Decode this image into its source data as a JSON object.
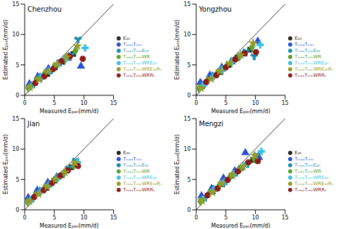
{
  "chart_data": [
    {
      "type": "scatter",
      "title": "Chenzhou",
      "x_label": "Measured Eₚₐₙ(mm/d)",
      "y_label": "Estimated Eₚₐₙ(mm/d)",
      "xlim": [
        0,
        15
      ],
      "ylim": [
        0,
        15
      ],
      "xticks": [
        0,
        5,
        10,
        15
      ],
      "yticks": [
        0,
        5,
        10,
        15
      ],
      "grid": false,
      "legend": "right",
      "series": [
        {
          "name": "E₂₀",
          "color": "#222222",
          "marker": "square",
          "x": [
            1.2,
            2.5,
            3.8,
            5.1,
            6.4,
            8.2
          ],
          "y": [
            1.6,
            2.7,
            3.5,
            4.6,
            5.5,
            6.8
          ]
        },
        {
          "name": "TₘₐₓTₘᵢₙ",
          "color": "#2a4fd6",
          "marker": "triangle",
          "x": [
            0.8,
            2.2,
            4.0,
            5.6,
            7.3,
            9.5
          ],
          "y": [
            1.9,
            3.1,
            4.4,
            5.2,
            6.1,
            4.8
          ]
        },
        {
          "name": "TₘₐₓTₘᵢₙE₂₀",
          "color": "#1f8fb0",
          "marker": "wye",
          "x": [
            1.5,
            3.0,
            4.5,
            6.0,
            7.8,
            9.0
          ],
          "y": [
            1.8,
            3.2,
            4.1,
            5.4,
            6.6,
            9.2
          ]
        },
        {
          "name": "TₘₐₓTₘᵢₙWR",
          "color": "#5aa02c",
          "marker": "diamond",
          "x": [
            0.6,
            2.0,
            3.4,
            5.0,
            6.8,
            8.6
          ],
          "y": [
            1.2,
            2.5,
            3.6,
            4.7,
            5.9,
            7.4
          ]
        },
        {
          "name": "TₘₐₓTₘᵢₙWRE₂₀",
          "color": "#3cc0e0",
          "marker": "cross",
          "x": [
            1.0,
            2.8,
            4.2,
            5.8,
            7.0,
            10.2
          ],
          "y": [
            1.4,
            3.0,
            4.0,
            5.3,
            6.2,
            7.8
          ]
        },
        {
          "name": "TₘₐₓTₘᵢₙWRRₛ",
          "color": "#8b1a1a",
          "marker": "circle",
          "x": [
            1.8,
            3.3,
            4.8,
            6.2,
            7.6,
            9.8
          ],
          "y": [
            2.0,
            3.1,
            4.3,
            5.6,
            6.4,
            6.0
          ]
        },
        {
          "name": "TₘₐₓTₘᵢₙWRE₂₀Rₛ",
          "color": "#9a9a2a",
          "marker": "star",
          "x": [
            0.9,
            2.4,
            3.9,
            5.4,
            7.1,
            8.9
          ],
          "y": [
            1.3,
            2.6,
            3.9,
            5.1,
            6.3,
            8.1
          ]
        }
      ]
    },
    {
      "type": "scatter",
      "title": "Yongzhou",
      "x_label": "Measured Eₚₐₙ(mm/d)",
      "y_label": "Estimated Eₚₐₙ(mm/d)",
      "xlim": [
        0,
        15
      ],
      "ylim": [
        0,
        15
      ],
      "xticks": [
        0,
        5,
        10,
        15
      ],
      "yticks": [
        0,
        5,
        10,
        15
      ],
      "grid": false,
      "legend": "right",
      "series": [
        {
          "name": "E₂₀",
          "color": "#222222",
          "marker": "square",
          "x": [
            1.0,
            2.6,
            4.1,
            5.5,
            7.0,
            9.1
          ],
          "y": [
            1.5,
            2.9,
            3.8,
            5.0,
            6.2,
            7.5
          ]
        },
        {
          "name": "TₘₐₓTₘᵢₙ",
          "color": "#2a4fd6",
          "marker": "triangle",
          "x": [
            0.7,
            2.3,
            4.3,
            6.0,
            8.0,
            10.4
          ],
          "y": [
            2.1,
            3.3,
            4.6,
            5.5,
            6.8,
            8.9
          ]
        },
        {
          "name": "TₘₐₓTₘᵢₙE₂₀",
          "color": "#1f8fb0",
          "marker": "wye",
          "x": [
            1.4,
            3.1,
            4.7,
            6.3,
            8.4,
            9.8
          ],
          "y": [
            1.9,
            3.4,
            4.5,
            5.8,
            7.2,
            6.4
          ]
        },
        {
          "name": "TₘₐₓTₘᵢₙWR",
          "color": "#5aa02c",
          "marker": "diamond",
          "x": [
            0.5,
            1.9,
            3.6,
            5.2,
            7.2,
            9.4
          ],
          "y": [
            1.1,
            2.4,
            3.7,
            4.9,
            6.3,
            7.9
          ]
        },
        {
          "name": "TₘₐₓTₘᵢₙWRE₂₀",
          "color": "#3cc0e0",
          "marker": "cross",
          "x": [
            1.1,
            2.9,
            4.4,
            6.1,
            7.7,
            10.8
          ],
          "y": [
            1.5,
            3.1,
            4.2,
            5.6,
            6.7,
            8.3
          ]
        },
        {
          "name": "TₘₐₓTₘᵢₙWRRₛ",
          "color": "#8b1a1a",
          "marker": "circle",
          "x": [
            1.7,
            3.4,
            5.0,
            6.6,
            8.2,
            10.1
          ],
          "y": [
            2.2,
            3.3,
            4.6,
            5.9,
            6.9,
            7.1
          ]
        },
        {
          "name": "TₘₐₓTₘᵢₙWRE₂₀Rₛ",
          "color": "#9a9a2a",
          "marker": "star",
          "x": [
            0.8,
            2.5,
            4.0,
            5.7,
            7.5,
            9.6
          ],
          "y": [
            1.2,
            2.7,
            4.0,
            5.3,
            6.6,
            8.6
          ]
        }
      ]
    },
    {
      "type": "scatter",
      "title": "Jian",
      "x_label": "Measured Eₚₐₙ(mm/d)",
      "y_label": "Estimated Eₚₐₙ(mm/d)",
      "xlim": [
        0,
        15
      ],
      "ylim": [
        0,
        15
      ],
      "xticks": [
        0,
        5,
        10,
        15
      ],
      "yticks": [
        0,
        5,
        10,
        15
      ],
      "grid": false,
      "legend": "right",
      "series": [
        {
          "name": "E₂₀",
          "color": "#222222",
          "marker": "square",
          "x": [
            1.1,
            2.4,
            3.7,
            5.0,
            6.3,
            7.9
          ],
          "y": [
            1.7,
            2.8,
            3.6,
            4.8,
            5.7,
            7.0
          ]
        },
        {
          "name": "TₘₐₓTₘᵢₙ",
          "color": "#2a4fd6",
          "marker": "triangle",
          "x": [
            0.6,
            2.1,
            3.9,
            5.4,
            7.0,
            8.8
          ],
          "y": [
            2.0,
            3.2,
            4.5,
            5.4,
            6.4,
            7.6
          ]
        },
        {
          "name": "TₘₐₓTₘᵢₙE₂₀",
          "color": "#1f8fb0",
          "marker": "wye",
          "x": [
            1.3,
            2.9,
            4.4,
            5.8,
            7.4,
            8.6
          ],
          "y": [
            1.8,
            3.3,
            4.3,
            5.5,
            6.8,
            8.1
          ]
        },
        {
          "name": "TₘₐₓTₘᵢₙWR",
          "color": "#5aa02c",
          "marker": "diamond",
          "x": [
            0.5,
            1.8,
            3.3,
            4.9,
            6.6,
            8.3
          ],
          "y": [
            1.3,
            2.4,
            3.5,
            4.8,
            6.0,
            7.3
          ]
        },
        {
          "name": "TₘₐₓTₘᵢₙWRE₂₀",
          "color": "#3cc0e0",
          "marker": "cross",
          "x": [
            0.9,
            2.7,
            4.1,
            5.6,
            6.9,
            8.9
          ],
          "y": [
            1.5,
            3.0,
            4.1,
            5.2,
            6.3,
            7.8
          ]
        },
        {
          "name": "TₘₐₓTₘᵢₙWRRₛ",
          "color": "#8b1a1a",
          "marker": "circle",
          "x": [
            1.6,
            3.2,
            4.6,
            6.0,
            7.3,
            9.0
          ],
          "y": [
            2.1,
            3.2,
            4.4,
            5.6,
            6.5,
            7.2
          ]
        },
        {
          "name": "TₘₐₓTₘᵢₙWRE₂₀Rₛ",
          "color": "#9a9a2a",
          "marker": "star",
          "x": [
            0.8,
            2.3,
            3.8,
            5.2,
            6.8,
            8.5
          ],
          "y": [
            1.4,
            2.6,
            3.8,
            5.0,
            6.2,
            7.7
          ]
        }
      ]
    },
    {
      "type": "scatter",
      "title": "Mengzi",
      "x_label": "Measured Eₚₐₙ(mm/d)",
      "y_label": "Estimated Eₚₐₙ(mm/d)",
      "xlim": [
        0,
        15
      ],
      "ylim": [
        0,
        15
      ],
      "xticks": [
        0,
        5,
        10,
        15
      ],
      "yticks": [
        0,
        5,
        10,
        15
      ],
      "grid": false,
      "legend": "right",
      "series": [
        {
          "name": "E₂₀",
          "color": "#222222",
          "marker": "square",
          "x": [
            1.3,
            2.8,
            4.4,
            6.0,
            7.6,
            9.6
          ],
          "y": [
            1.9,
            3.0,
            4.2,
            5.6,
            6.9,
            8.2
          ]
        },
        {
          "name": "TₘₐₓTₘᵢₙ",
          "color": "#2a4fd6",
          "marker": "triangle",
          "x": [
            0.9,
            2.6,
            4.6,
            6.5,
            8.3,
            10.6
          ],
          "y": [
            2.3,
            3.5,
            5.2,
            6.4,
            9.4,
            8.6
          ]
        },
        {
          "name": "TₘₐₓTₘᵢₙE₂₀",
          "color": "#1f8fb0",
          "marker": "wye",
          "x": [
            1.6,
            3.3,
            5.0,
            6.8,
            8.7,
            10.2
          ],
          "y": [
            2.0,
            3.6,
            4.7,
            6.1,
            7.5,
            9.0
          ]
        },
        {
          "name": "TₘₐₓTₘᵢₙWR",
          "color": "#5aa02c",
          "marker": "diamond",
          "x": [
            0.7,
            2.2,
            3.9,
            5.7,
            7.5,
            9.8
          ],
          "y": [
            1.4,
            2.7,
            4.0,
            5.4,
            6.8,
            8.4
          ]
        },
        {
          "name": "TₘₐₓTₘᵢₙWRE₂₀",
          "color": "#3cc0e0",
          "marker": "cross",
          "x": [
            1.2,
            3.0,
            4.8,
            6.4,
            8.1,
            11.0
          ],
          "y": [
            1.7,
            3.3,
            4.6,
            5.9,
            7.2,
            9.6
          ]
        },
        {
          "name": "TₘₐₓTₘᵢₙWRRₛ",
          "color": "#8b1a1a",
          "marker": "circle",
          "x": [
            1.9,
            3.6,
            5.3,
            7.0,
            8.8,
            10.4
          ],
          "y": [
            2.4,
            3.5,
            4.9,
            6.3,
            7.8,
            8.0
          ]
        },
        {
          "name": "TₘₐₓTₘᵢₙWRE₂₀Rₛ",
          "color": "#9a9a2a",
          "marker": "star",
          "x": [
            1.0,
            2.7,
            4.3,
            6.1,
            7.9,
            9.9
          ],
          "y": [
            1.5,
            2.9,
            4.3,
            5.7,
            7.1,
            8.9
          ]
        }
      ]
    }
  ]
}
